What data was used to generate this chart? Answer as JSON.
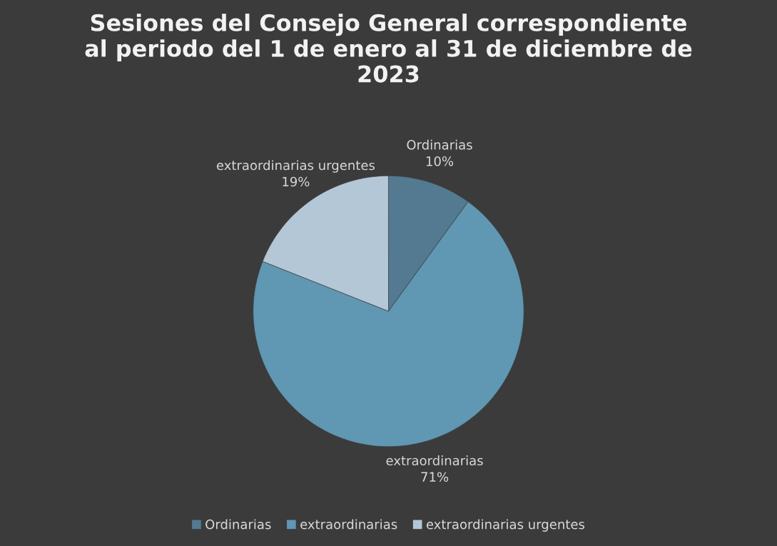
{
  "chart_data": {
    "type": "pie",
    "title": "Sesiones del Consejo General correspondiente al periodo del 1 de enero al 31 de diciembre de 2023",
    "categories": [
      "Ordinarias",
      "extraordinarias",
      "extraordinarias urgentes"
    ],
    "values": [
      10,
      71,
      19
    ],
    "value_labels": [
      "10%",
      "71%",
      "19%"
    ],
    "colors": [
      "#537a91",
      "#6097b3",
      "#b4c7d6"
    ],
    "legend": "bottom"
  }
}
